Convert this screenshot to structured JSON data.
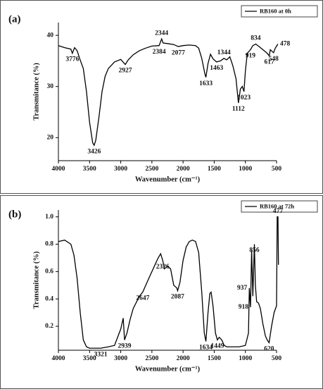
{
  "chart_data": [
    {
      "type": "line",
      "panel": "(a)",
      "xlabel": "Wavenumber (cm⁻¹)",
      "ylabel": "Transmitance (%)",
      "xlim": [
        4000,
        500
      ],
      "xticks": [
        4000,
        3500,
        3000,
        2500,
        2000,
        1500,
        1000,
        500
      ],
      "ylim": [
        15.5,
        42.5
      ],
      "yticks": [
        20,
        30,
        40
      ],
      "legend": "upper right",
      "x": [
        4000,
        3900,
        3800,
        3776,
        3740,
        3700,
        3660,
        3600,
        3550,
        3500,
        3450,
        3426,
        3400,
        3350,
        3300,
        3250,
        3200,
        3100,
        3000,
        2927,
        2880,
        2800,
        2700,
        2600,
        2500,
        2384,
        2360,
        2344,
        2320,
        2250,
        2150,
        2077,
        2000,
        1900,
        1800,
        1750,
        1700,
        1650,
        1633,
        1600,
        1560,
        1520,
        1463,
        1400,
        1344,
        1300,
        1250,
        1200,
        1150,
        1112,
        1080,
        1050,
        1023,
        1000,
        970,
        919,
        880,
        834,
        780,
        700,
        650,
        617,
        600,
        548,
        520,
        478
      ],
      "series": [
        {
          "name": "RB160 at 0h",
          "color": "#000000",
          "values": [
            38.0,
            37.6,
            37.3,
            36.5,
            37.6,
            37.0,
            35.5,
            33.5,
            29,
            23,
            19.0,
            18.5,
            19.5,
            24,
            29,
            32,
            33.5,
            34.8,
            35.3,
            34.3,
            35.2,
            36.2,
            37.0,
            37.5,
            37.9,
            38.0,
            38.8,
            39.3,
            38.5,
            38.4,
            38.2,
            37.8,
            38.0,
            38.1,
            38.0,
            37.5,
            35.5,
            32.5,
            31.8,
            34.5,
            36.3,
            35.4,
            34.8,
            35.0,
            35.5,
            35.2,
            35.8,
            34.0,
            31.5,
            26.8,
            29.5,
            30.0,
            29.0,
            33.0,
            36.5,
            37.2,
            38.0,
            38.3,
            37.8,
            37.0,
            36.5,
            36.0,
            37.2,
            36.6,
            37.5,
            38.3
          ]
        }
      ],
      "annotations": [
        {
          "value": 3776,
          "side": "below"
        },
        {
          "value": 3426,
          "side": "below"
        },
        {
          "value": 2927,
          "side": "below"
        },
        {
          "value": 2384,
          "side": "below"
        },
        {
          "value": 2344,
          "side": "above"
        },
        {
          "value": 2077,
          "side": "below"
        },
        {
          "value": 1633,
          "side": "below"
        },
        {
          "value": 1463,
          "side": "below"
        },
        {
          "value": 1344,
          "side": "above"
        },
        {
          "value": 1112,
          "side": "below"
        },
        {
          "value": 1023,
          "side": "below"
        },
        {
          "value": 919,
          "side": "below"
        },
        {
          "value": 834,
          "side": "above"
        },
        {
          "value": 617,
          "side": "below"
        },
        {
          "value": 548,
          "side": "below"
        },
        {
          "value": 478,
          "side": "right"
        }
      ]
    },
    {
      "type": "line",
      "panel": "(b)",
      "xlabel": "Wavenumber (cm⁻¹)",
      "ylabel": "Transmitance (%)",
      "xlim": [
        4000,
        500
      ],
      "xticks": [
        4000,
        3500,
        3000,
        2500,
        2000,
        1500,
        1000,
        500
      ],
      "ylim": [
        0.025,
        1.05
      ],
      "yticks": [
        0.2,
        0.4,
        0.6,
        0.8,
        {
          "value": 1.0,
          "label": "1.0"
        }
      ],
      "legend": "upper right",
      "x": [
        4000,
        3900,
        3800,
        3750,
        3700,
        3650,
        3600,
        3550,
        3500,
        3321,
        3200,
        3100,
        3000,
        2960,
        2939,
        2900,
        2850,
        2800,
        2700,
        2647,
        2550,
        2450,
        2400,
        2360,
        2326,
        2300,
        2250,
        2200,
        2150,
        2100,
        2087,
        2050,
        2000,
        1950,
        1900,
        1850,
        1800,
        1750,
        1700,
        1660,
        1634,
        1600,
        1570,
        1550,
        1520,
        1480,
        1449,
        1420,
        1380,
        1340,
        1300,
        1100,
        1000,
        950,
        937,
        918,
        900,
        880,
        856,
        840,
        820,
        790,
        760,
        720,
        680,
        650,
        620,
        580,
        540,
        500,
        490,
        477,
        470
      ],
      "series": [
        {
          "name": "RB160 at 72h",
          "color": "#000000",
          "values": [
            0.82,
            0.83,
            0.8,
            0.72,
            0.55,
            0.3,
            0.1,
            0.05,
            0.04,
            0.04,
            0.05,
            0.06,
            0.18,
            0.26,
            0.1,
            0.15,
            0.25,
            0.33,
            0.42,
            0.45,
            0.55,
            0.65,
            0.7,
            0.73,
            0.68,
            0.62,
            0.64,
            0.62,
            0.5,
            0.48,
            0.46,
            0.52,
            0.68,
            0.78,
            0.82,
            0.83,
            0.82,
            0.74,
            0.45,
            0.15,
            0.09,
            0.3,
            0.44,
            0.45,
            0.35,
            0.15,
            0.1,
            0.12,
            0.1,
            0.06,
            0.05,
            0.05,
            0.06,
            0.15,
            0.48,
            0.34,
            0.76,
            0.42,
            0.8,
            0.5,
            0.38,
            0.37,
            0.33,
            0.22,
            0.13,
            0.1,
            0.08,
            0.2,
            0.3,
            0.35,
            1.0,
            1.0,
            0.65
          ]
        }
      ],
      "annotations": [
        {
          "value": 3321,
          "side": "below"
        },
        {
          "value": 2939,
          "side": "below"
        },
        {
          "value": 2647,
          "side": "below"
        },
        {
          "value": 2326,
          "side": "below"
        },
        {
          "value": 2087,
          "side": "below"
        },
        {
          "value": 1634,
          "side": "below"
        },
        {
          "value": 1449,
          "side": "below"
        },
        {
          "value": 937,
          "side": "left"
        },
        {
          "value": 918,
          "side": "left"
        },
        {
          "value": 856,
          "side": "below"
        },
        {
          "value": 620,
          "side": "below"
        },
        {
          "value": 477,
          "side": "above"
        }
      ]
    }
  ]
}
